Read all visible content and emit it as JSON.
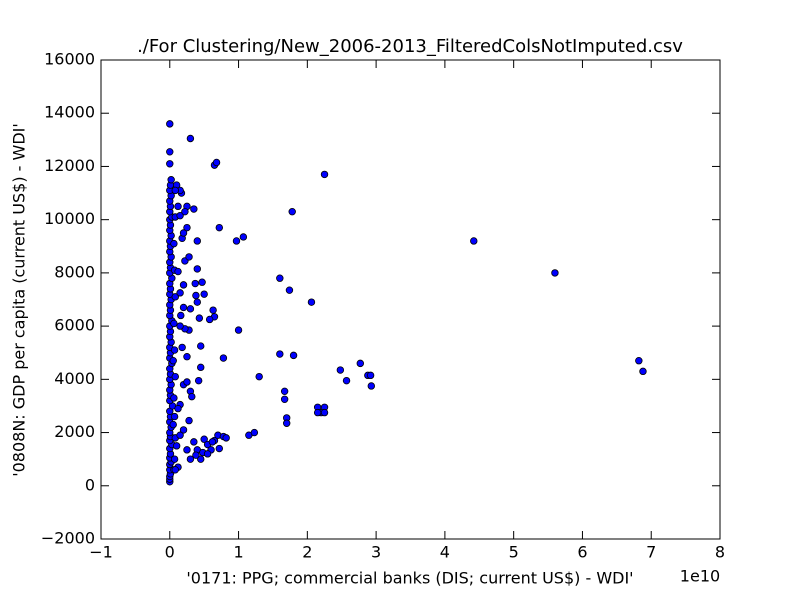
{
  "chart_data": {
    "type": "scatter",
    "title": "./For Clustering/New_2006-2013_FilteredColsNotImputed.csv",
    "x_label": "'0171: PPG; commercial banks  (DIS; current US$) - WDI'",
    "y_label": "'0808N: GDP per capita  (current US$) - WDI'",
    "x_offset_label": "1e10",
    "xlim": [
      -1,
      8
    ],
    "xticks": [
      {
        "value": -1,
        "label": "−1"
      },
      0,
      1,
      2,
      3,
      4,
      5,
      6,
      7,
      8
    ],
    "ylim": [
      -2000,
      16000
    ],
    "yticks": [
      {
        "value": -2000,
        "label": "−2000"
      },
      0,
      2000,
      4000,
      6000,
      8000,
      10000,
      12000,
      14000,
      16000
    ],
    "grid": false,
    "series": [
      {
        "color": "#0000ff",
        "x": [
          0,
          0,
          0,
          0.01,
          0,
          0,
          0.02,
          0,
          0.01,
          0,
          0.03,
          0,
          0.01,
          0,
          0.02,
          0,
          0.01,
          0,
          0.04,
          0,
          0.01,
          0,
          0.02,
          0,
          0.01,
          0,
          0.03,
          0,
          0.01,
          0,
          0.02,
          0,
          0.01,
          0,
          0.03,
          0,
          0.01,
          0,
          0.02,
          0,
          0.01,
          0,
          0.03,
          0,
          0.01,
          0,
          0.02,
          0,
          0.01,
          0,
          0.02,
          0,
          0.01,
          0,
          0.03,
          0,
          0.01,
          0,
          0.02,
          0,
          0.01,
          0.02,
          0.06,
          0.07,
          0.08,
          0.07,
          0.06,
          0.08,
          0.07,
          0.06,
          0.08,
          0.07,
          0.06,
          0.08,
          0.05,
          0.05,
          0,
          0,
          0,
          0.3,
          0.65,
          0.68,
          2.25,
          1.78,
          1.07,
          0.97,
          0.72,
          4.42,
          5.6,
          6.82,
          6.88,
          1.6,
          1.74,
          2.06,
          1.0,
          1.6,
          1.8,
          2.77,
          2.48,
          2.57,
          2.88,
          2.92,
          2.93,
          1.3,
          1.67,
          1.67,
          1.7,
          1.7,
          2.15,
          2.2,
          2.25,
          2.25,
          2.15,
          1.15,
          1.23,
          0.78,
          0.63,
          0.65,
          0.58,
          0.43,
          0.4,
          0.38,
          0.5,
          0.47,
          0.37,
          0.4,
          0.4,
          0.35,
          0.25,
          0.17,
          0.15,
          0.25,
          0.35,
          0.4,
          0.45,
          0.5,
          0.55,
          0.6,
          0.65,
          0.7,
          0.72,
          0.78,
          0.82,
          0.48,
          0.38,
          0.3,
          0.25,
          0.55,
          0.62,
          0.2,
          0.25,
          0.3,
          0.32,
          0.28,
          0.42,
          0.45,
          0.45,
          0.28,
          0.22,
          0.15,
          0.2,
          0.3,
          0.22,
          0.28,
          0.12,
          0.15,
          0.2,
          0.25,
          0.18,
          0.15,
          0.12,
          0.2,
          0.15,
          0.1,
          0.12,
          0.08,
          0.15,
          0.12,
          0.18,
          0.22,
          0.2,
          0.1,
          0.08,
          0.16
        ],
        "values": [
          150,
          250,
          350,
          450,
          600,
          800,
          900,
          1050,
          1200,
          1400,
          1550,
          1700,
          1850,
          2000,
          2200,
          2400,
          2600,
          2800,
          3000,
          3200,
          3400,
          3600,
          3800,
          4000,
          4200,
          4400,
          4600,
          4800,
          5000,
          5200,
          5400,
          5600,
          5800,
          6000,
          6200,
          6400,
          6600,
          6800,
          7000,
          7200,
          7400,
          7600,
          7800,
          8000,
          8200,
          8400,
          8600,
          8800,
          9000,
          9200,
          9400,
          9600,
          9800,
          10000,
          10100,
          10300,
          10500,
          10700,
          10900,
          11100,
          11300,
          11500,
          600,
          1000,
          1800,
          2600,
          3300,
          4100,
          5100,
          6100,
          7100,
          8100,
          9100,
          10100,
          4700,
          2300,
          13600,
          12550,
          12100,
          13050,
          12050,
          12150,
          11700,
          10300,
          9350,
          9200,
          9700,
          9200,
          8000,
          4700,
          4300,
          7800,
          7350,
          6900,
          5850,
          4950,
          4900,
          4600,
          4350,
          3950,
          4150,
          4150,
          3750,
          4100,
          3550,
          3250,
          2550,
          2350,
          2950,
          2750,
          2950,
          2750,
          2750,
          1900,
          2000,
          4800,
          6600,
          6350,
          6250,
          6300,
          6900,
          7150,
          7200,
          7650,
          7600,
          8150,
          9200,
          10400,
          10500,
          11000,
          11100,
          9700,
          1650,
          1350,
          1000,
          1750,
          1550,
          1350,
          1700,
          1900,
          1400,
          1850,
          1800,
          1250,
          1150,
          1000,
          1350,
          1200,
          1650,
          3800,
          3900,
          3550,
          3350,
          2450,
          3950,
          4450,
          5250,
          5850,
          5900,
          6000,
          6700,
          6650,
          8450,
          8600,
          8050,
          7250,
          7550,
          4850,
          5200,
          3050,
          2900,
          2100,
          1900,
          1500,
          700,
          600,
          10150,
          10500,
          9300,
          10300,
          9500,
          11300,
          11100,
          6400
        ]
      }
    ]
  }
}
